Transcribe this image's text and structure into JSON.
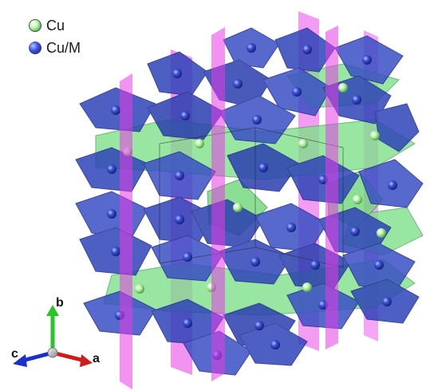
{
  "legend": {
    "items": [
      {
        "label": "Cu",
        "icon": "green-white-sphere-icon"
      },
      {
        "label": "Cu/M",
        "icon": "blue-sphere-icon"
      }
    ]
  },
  "axes": {
    "a": "a",
    "b": "b",
    "c": "c"
  },
  "colors": {
    "blue_polyhedron": "#2f44b8",
    "green_polyhedron": "#7fe08a",
    "magenta_plane": "#e83ae8",
    "axis_a": "#d11a1a",
    "axis_b": "#27c627",
    "axis_c": "#1a2fd0"
  }
}
